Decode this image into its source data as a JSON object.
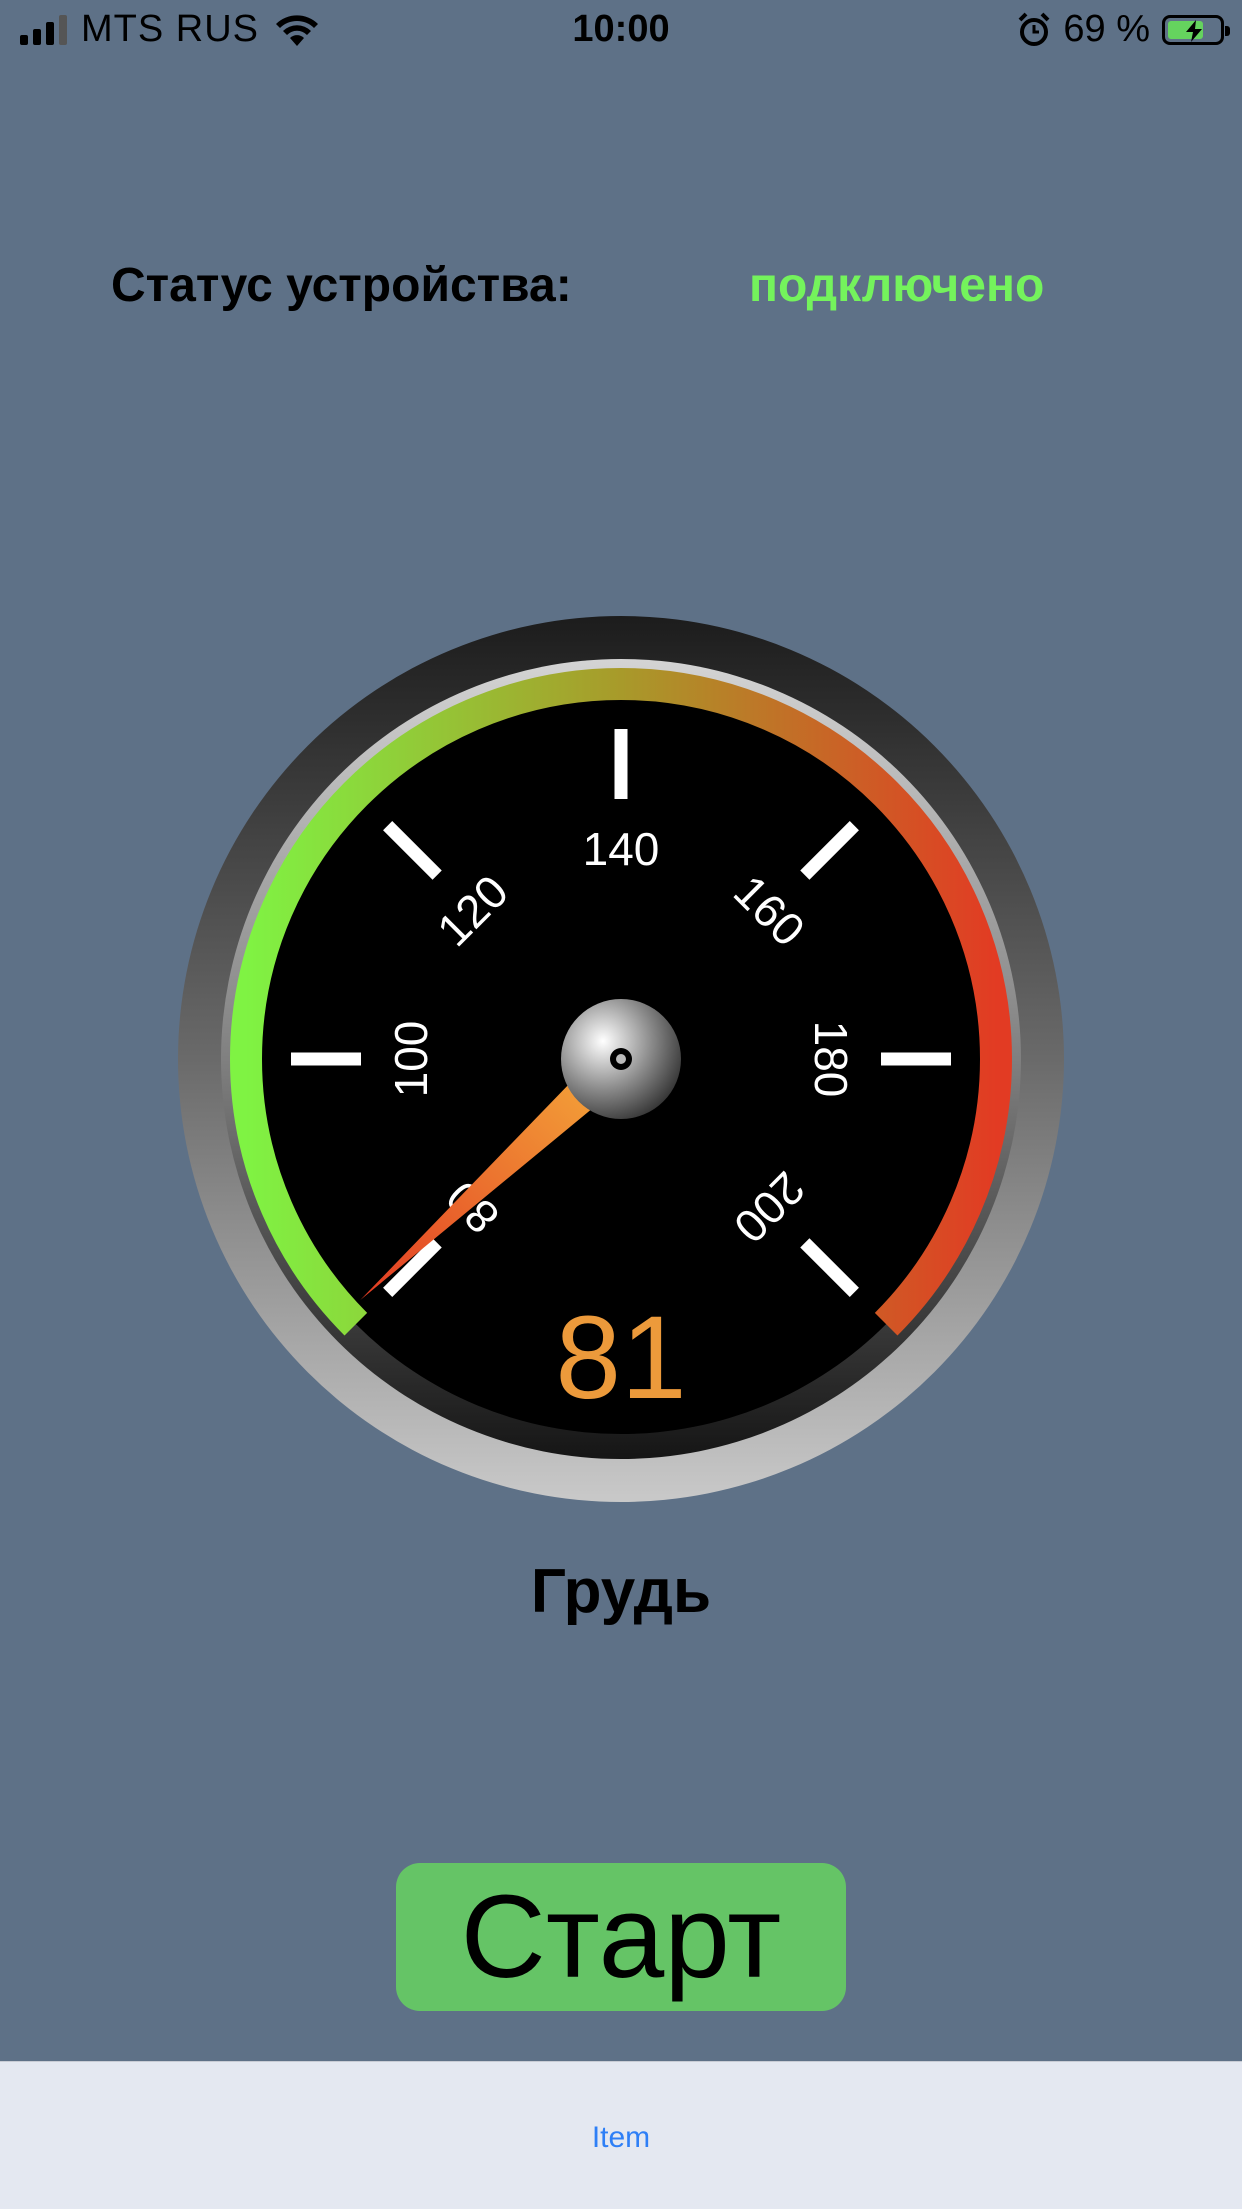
{
  "status_bar": {
    "carrier": "MTS RUS",
    "time": "10:00",
    "battery_percent": "69 %",
    "battery_level": 0.69
  },
  "device": {
    "label": "Статус устройства:",
    "status": "подключено",
    "status_color": "#74f35c"
  },
  "gauge": {
    "value": "81",
    "value_num": 81,
    "min": 80,
    "max": 200,
    "ticks": [
      "80",
      "100",
      "120",
      "140",
      "160",
      "180",
      "200"
    ],
    "name": "Грудь",
    "value_color": "#ec9a3b",
    "arc_colors": [
      "#7ff343",
      "#a89a2a",
      "#e23b23"
    ]
  },
  "actions": {
    "start_label": "Старт",
    "start_color": "#65c466"
  },
  "tabbar": {
    "item_label": "Item",
    "item_color": "#2e7ff6"
  }
}
